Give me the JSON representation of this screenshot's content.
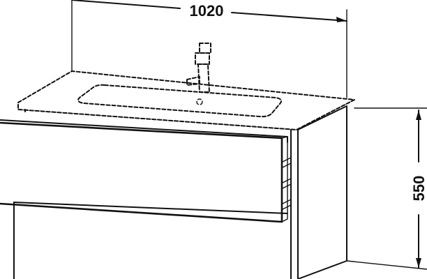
{
  "dimensions": {
    "width_label": "1020",
    "height_label": "550"
  }
}
